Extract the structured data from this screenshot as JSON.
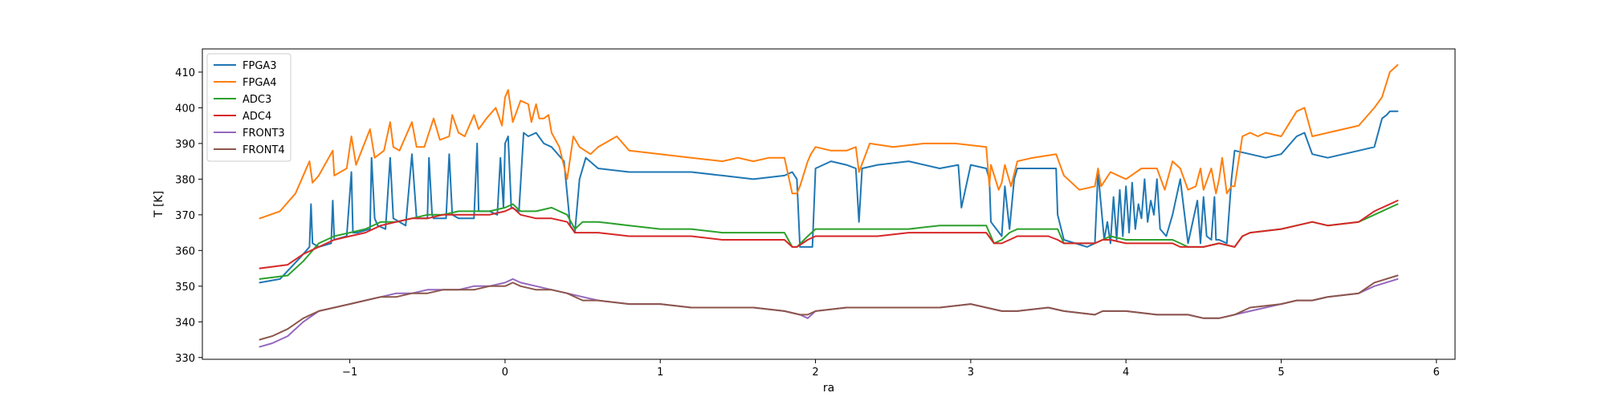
{
  "chart_data": {
    "type": "line",
    "xlabel": "ra",
    "ylabel": "T [K]",
    "xlim": [
      -1.95,
      6.12
    ],
    "ylim": [
      329.5,
      416.5
    ],
    "xticks": [
      -1,
      0,
      1,
      2,
      3,
      4,
      5,
      6
    ],
    "xtick_labels": [
      "−1",
      "0",
      "1",
      "2",
      "3",
      "4",
      "5",
      "6"
    ],
    "yticks": [
      330,
      340,
      350,
      360,
      370,
      380,
      390,
      400,
      410
    ],
    "ytick_labels": [
      "330",
      "340",
      "350",
      "360",
      "370",
      "380",
      "390",
      "400",
      "410"
    ],
    "legend_position": "top-left",
    "grid": false,
    "series": [
      {
        "name": "FPGA3",
        "color": "#1f77b4",
        "x": [
          -1.58,
          -1.45,
          -1.32,
          -1.26,
          -1.25,
          -1.24,
          -1.2,
          -1.12,
          -1.11,
          -1.1,
          -1.02,
          -0.99,
          -0.98,
          -0.95,
          -0.87,
          -0.86,
          -0.84,
          -0.82,
          -0.77,
          -0.74,
          -0.72,
          -0.68,
          -0.64,
          -0.6,
          -0.57,
          -0.5,
          -0.49,
          -0.47,
          -0.46,
          -0.38,
          -0.36,
          -0.34,
          -0.3,
          -0.2,
          -0.18,
          -0.17,
          -0.1,
          -0.05,
          -0.03,
          -0.01,
          0.0,
          0.02,
          0.04,
          0.09,
          0.12,
          0.15,
          0.2,
          0.25,
          0.3,
          0.38,
          0.42,
          0.45,
          0.48,
          0.52,
          0.6,
          0.8,
          1.0,
          1.2,
          1.4,
          1.6,
          1.8,
          1.85,
          1.88,
          1.9,
          1.95,
          1.98,
          2.0,
          2.1,
          2.2,
          2.26,
          2.28,
          2.3,
          2.4,
          2.6,
          2.8,
          2.92,
          2.94,
          3.0,
          3.1,
          3.12,
          3.13,
          3.2,
          3.22,
          3.25,
          3.28,
          3.3,
          3.4,
          3.55,
          3.56,
          3.6,
          3.75,
          3.8,
          3.82,
          3.86,
          3.88,
          3.9,
          3.92,
          3.94,
          3.96,
          3.98,
          4.0,
          4.02,
          4.04,
          4.06,
          4.08,
          4.1,
          4.12,
          4.14,
          4.16,
          4.18,
          4.2,
          4.22,
          4.26,
          4.3,
          4.35,
          4.4,
          4.46,
          4.48,
          4.5,
          4.52,
          4.55,
          4.57,
          4.58,
          4.6,
          4.65,
          4.68,
          4.7,
          4.8,
          4.9,
          5.0,
          5.1,
          5.15,
          5.2,
          5.3,
          5.5,
          5.6,
          5.65,
          5.68,
          5.7,
          5.75
        ],
        "y": [
          351,
          352,
          358,
          361,
          373,
          362,
          361,
          362,
          374,
          363,
          364,
          382,
          365,
          365,
          366,
          386,
          369,
          367,
          366,
          386,
          369,
          368,
          367,
          387,
          369,
          369,
          386,
          370,
          369,
          369,
          387,
          370,
          369,
          369,
          390,
          371,
          371,
          370,
          386,
          372,
          390,
          392,
          372,
          371,
          393,
          392,
          393,
          390,
          389,
          385,
          367,
          365,
          380,
          386,
          383,
          382,
          382,
          382,
          381,
          380,
          381,
          382,
          380,
          361,
          361,
          361,
          383,
          385,
          384,
          383,
          368,
          383,
          384,
          385,
          383,
          384,
          372,
          384,
          383,
          380,
          368,
          364,
          378,
          366,
          380,
          383,
          383,
          383,
          370,
          363,
          361,
          362,
          382,
          363,
          368,
          362,
          375,
          363,
          377,
          364,
          378,
          365,
          379,
          366,
          373,
          369,
          380,
          368,
          374,
          370,
          380,
          366,
          364,
          370,
          380,
          362,
          374,
          362,
          375,
          364,
          363,
          375,
          363,
          363,
          362,
          380,
          388,
          387,
          386,
          387,
          392,
          393,
          387,
          386,
          388,
          389,
          397,
          398,
          399,
          399
        ]
      },
      {
        "name": "FPGA4",
        "color": "#ff7f0e",
        "x": [
          -1.58,
          -1.45,
          -1.35,
          -1.26,
          -1.24,
          -1.2,
          -1.11,
          -1.1,
          -1.02,
          -0.99,
          -0.96,
          -0.87,
          -0.84,
          -0.78,
          -0.74,
          -0.72,
          -0.68,
          -0.6,
          -0.57,
          -0.52,
          -0.46,
          -0.42,
          -0.36,
          -0.34,
          -0.3,
          -0.26,
          -0.2,
          -0.17,
          -0.12,
          -0.06,
          -0.02,
          0.0,
          0.02,
          0.05,
          0.1,
          0.15,
          0.17,
          0.2,
          0.22,
          0.25,
          0.28,
          0.3,
          0.35,
          0.4,
          0.44,
          0.48,
          0.55,
          0.6,
          0.72,
          0.8,
          1.0,
          1.2,
          1.4,
          1.5,
          1.6,
          1.7,
          1.8,
          1.85,
          1.88,
          1.9,
          1.95,
          1.97,
          2.0,
          2.1,
          2.2,
          2.26,
          2.28,
          2.35,
          2.5,
          2.7,
          2.9,
          3.1,
          3.12,
          3.13,
          3.18,
          3.2,
          3.22,
          3.26,
          3.3,
          3.4,
          3.55,
          3.6,
          3.7,
          3.8,
          3.82,
          3.84,
          3.9,
          4.0,
          4.1,
          4.2,
          4.25,
          4.3,
          4.35,
          4.4,
          4.45,
          4.48,
          4.5,
          4.55,
          4.58,
          4.6,
          4.62,
          4.65,
          4.68,
          4.7,
          4.75,
          4.8,
          4.85,
          4.9,
          5.0,
          5.1,
          5.15,
          5.2,
          5.3,
          5.5,
          5.6,
          5.65,
          5.7,
          5.75
        ],
        "y": [
          369,
          371,
          376,
          385,
          379,
          381,
          388,
          381,
          383,
          392,
          384,
          394,
          386,
          388,
          396,
          389,
          388,
          396,
          389,
          389,
          397,
          391,
          392,
          398,
          393,
          392,
          398,
          394,
          397,
          400,
          395,
          403,
          405,
          396,
          402,
          401,
          396,
          401,
          397,
          397,
          398,
          393,
          389,
          380,
          392,
          389,
          387,
          389,
          392,
          388,
          387,
          386,
          385,
          386,
          385,
          386,
          386,
          376,
          376,
          378,
          385,
          387,
          389,
          388,
          388,
          389,
          382,
          390,
          389,
          390,
          390,
          389,
          378,
          384,
          377,
          379,
          384,
          378,
          385,
          386,
          387,
          381,
          377,
          378,
          383,
          378,
          382,
          380,
          383,
          383,
          377,
          385,
          383,
          377,
          378,
          383,
          377,
          383,
          376,
          380,
          386,
          376,
          378,
          378,
          392,
          393,
          392,
          393,
          392,
          399,
          400,
          392,
          393,
          395,
          400,
          403,
          410,
          412
        ]
      },
      {
        "name": "ADC3",
        "color": "#2ca02c",
        "x": [
          -1.58,
          -1.4,
          -1.3,
          -1.2,
          -1.1,
          -1.0,
          -0.9,
          -0.8,
          -0.7,
          -0.6,
          -0.5,
          -0.4,
          -0.3,
          -0.2,
          -0.1,
          0.0,
          0.05,
          0.1,
          0.2,
          0.3,
          0.4,
          0.45,
          0.5,
          0.6,
          0.8,
          1.0,
          1.2,
          1.4,
          1.6,
          1.8,
          1.85,
          1.88,
          1.95,
          2.0,
          2.2,
          2.4,
          2.6,
          2.8,
          3.0,
          3.1,
          3.15,
          3.2,
          3.25,
          3.3,
          3.5,
          3.56,
          3.6,
          3.8,
          3.85,
          3.9,
          4.0,
          4.2,
          4.3,
          4.35,
          4.4,
          4.45,
          4.5,
          4.6,
          4.7,
          4.75,
          4.8,
          5.0,
          5.1,
          5.2,
          5.3,
          5.5,
          5.6,
          5.75
        ],
        "y": [
          352,
          353,
          357,
          362,
          364,
          365,
          366,
          368,
          368,
          369,
          370,
          370,
          371,
          371,
          371,
          372,
          373,
          371,
          371,
          372,
          370,
          366,
          368,
          368,
          367,
          366,
          366,
          365,
          365,
          365,
          361,
          361,
          364,
          366,
          366,
          366,
          366,
          367,
          367,
          367,
          362,
          363,
          365,
          366,
          366,
          366,
          362,
          362,
          363,
          364,
          363,
          363,
          363,
          362,
          361,
          361,
          361,
          362,
          361,
          364,
          365,
          366,
          367,
          368,
          367,
          368,
          370,
          373
        ]
      },
      {
        "name": "ADC4",
        "color": "#d62728",
        "x": [
          -1.58,
          -1.4,
          -1.3,
          -1.2,
          -1.1,
          -1.0,
          -0.9,
          -0.8,
          -0.7,
          -0.6,
          -0.5,
          -0.4,
          -0.3,
          -0.2,
          -0.1,
          0.0,
          0.05,
          0.1,
          0.2,
          0.3,
          0.4,
          0.45,
          0.5,
          0.6,
          0.8,
          1.0,
          1.2,
          1.4,
          1.6,
          1.8,
          1.85,
          1.88,
          1.95,
          2.0,
          2.2,
          2.4,
          2.6,
          2.8,
          3.0,
          3.1,
          3.15,
          3.2,
          3.25,
          3.3,
          3.5,
          3.56,
          3.6,
          3.8,
          3.85,
          3.9,
          4.0,
          4.2,
          4.3,
          4.35,
          4.4,
          4.45,
          4.5,
          4.6,
          4.7,
          4.75,
          4.8,
          5.0,
          5.1,
          5.2,
          5.3,
          5.5,
          5.6,
          5.75
        ],
        "y": [
          355,
          356,
          359,
          361,
          363,
          364,
          365,
          367,
          368,
          369,
          369,
          370,
          370,
          370,
          370,
          371,
          372,
          370,
          369,
          369,
          368,
          365,
          365,
          365,
          364,
          364,
          364,
          363,
          363,
          363,
          361,
          361,
          363,
          364,
          364,
          364,
          365,
          365,
          365,
          365,
          362,
          362,
          363,
          364,
          364,
          363,
          362,
          362,
          363,
          363,
          362,
          362,
          362,
          361,
          361,
          361,
          361,
          362,
          361,
          364,
          365,
          366,
          367,
          368,
          367,
          368,
          371,
          374
        ]
      },
      {
        "name": "FRONT3",
        "color": "#9467bd",
        "x": [
          -1.58,
          -1.5,
          -1.4,
          -1.3,
          -1.2,
          -1.1,
          -1.0,
          -0.9,
          -0.8,
          -0.7,
          -0.6,
          -0.5,
          -0.4,
          -0.3,
          -0.2,
          -0.1,
          0.0,
          0.05,
          0.1,
          0.2,
          0.3,
          0.4,
          0.5,
          0.6,
          0.8,
          1.0,
          1.2,
          1.4,
          1.6,
          1.8,
          1.9,
          1.95,
          2.0,
          2.2,
          2.4,
          2.6,
          2.8,
          3.0,
          3.1,
          3.2,
          3.3,
          3.5,
          3.6,
          3.8,
          3.85,
          3.9,
          4.0,
          4.2,
          4.3,
          4.4,
          4.5,
          4.6,
          4.7,
          4.8,
          5.0,
          5.1,
          5.2,
          5.3,
          5.5,
          5.6,
          5.75
        ],
        "y": [
          333,
          334,
          336,
          340,
          343,
          344,
          345,
          346,
          347,
          348,
          348,
          349,
          349,
          349,
          350,
          350,
          351,
          352,
          351,
          350,
          349,
          348,
          347,
          346,
          345,
          345,
          344,
          344,
          344,
          343,
          342,
          341,
          343,
          344,
          344,
          344,
          344,
          345,
          344,
          343,
          343,
          344,
          343,
          342,
          343,
          343,
          343,
          342,
          342,
          342,
          341,
          341,
          342,
          343,
          345,
          346,
          346,
          347,
          348,
          350,
          352
        ]
      },
      {
        "name": "FRONT4",
        "color": "#8c564b",
        "x": [
          -1.58,
          -1.5,
          -1.4,
          -1.3,
          -1.2,
          -1.1,
          -1.0,
          -0.9,
          -0.8,
          -0.7,
          -0.6,
          -0.5,
          -0.4,
          -0.3,
          -0.2,
          -0.1,
          0.0,
          0.05,
          0.1,
          0.2,
          0.3,
          0.4,
          0.5,
          0.6,
          0.8,
          1.0,
          1.2,
          1.4,
          1.6,
          1.8,
          1.9,
          1.95,
          2.0,
          2.2,
          2.4,
          2.6,
          2.8,
          3.0,
          3.1,
          3.2,
          3.3,
          3.5,
          3.6,
          3.8,
          3.85,
          3.9,
          4.0,
          4.2,
          4.3,
          4.4,
          4.5,
          4.6,
          4.7,
          4.8,
          5.0,
          5.1,
          5.2,
          5.3,
          5.5,
          5.6,
          5.75
        ],
        "y": [
          335,
          336,
          338,
          341,
          343,
          344,
          345,
          346,
          347,
          347,
          348,
          348,
          349,
          349,
          349,
          350,
          350,
          351,
          350,
          349,
          349,
          348,
          346,
          346,
          345,
          345,
          344,
          344,
          344,
          343,
          342,
          342,
          343,
          344,
          344,
          344,
          344,
          345,
          344,
          343,
          343,
          344,
          343,
          342,
          343,
          343,
          343,
          342,
          342,
          342,
          341,
          341,
          342,
          344,
          345,
          346,
          346,
          347,
          348,
          351,
          353
        ]
      }
    ]
  }
}
